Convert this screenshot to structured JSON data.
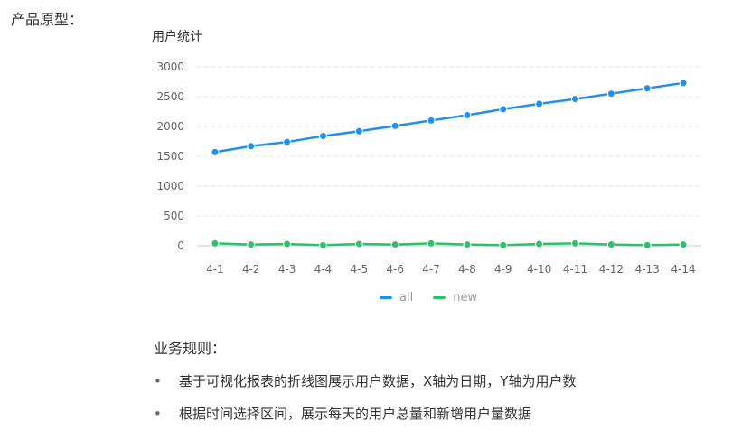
{
  "page": {
    "section_label": "产品原型：",
    "rules_heading": "业务规则：",
    "rules": [
      "基于可视化报表的折线图展示用户数据，X轴为日期，Y轴为用户数",
      "根据时间选择区间，展示每天的用户总量和新增用户量数据"
    ],
    "bullet_char": "•"
  },
  "chart_data": {
    "type": "line",
    "title": "用户统计",
    "categories": [
      "4-1",
      "4-2",
      "4-3",
      "4-4",
      "4-5",
      "4-6",
      "4-7",
      "4-8",
      "4-9",
      "4-10",
      "4-11",
      "4-12",
      "4-13",
      "4-14"
    ],
    "ylim": [
      0,
      3000
    ],
    "yticks": [
      0,
      500,
      1000,
      1500,
      2000,
      2500,
      3000
    ],
    "grid": true,
    "legend_position": "bottom",
    "series": [
      {
        "name": "all",
        "color": "#1e90f0",
        "values": [
          1570,
          1670,
          1740,
          1840,
          1920,
          2010,
          2100,
          2190,
          2290,
          2380,
          2460,
          2550,
          2640,
          2730
        ]
      },
      {
        "name": "new",
        "color": "#2ec16b",
        "values": [
          40,
          20,
          30,
          10,
          30,
          20,
          40,
          20,
          10,
          30,
          40,
          20,
          10,
          20
        ]
      }
    ]
  }
}
